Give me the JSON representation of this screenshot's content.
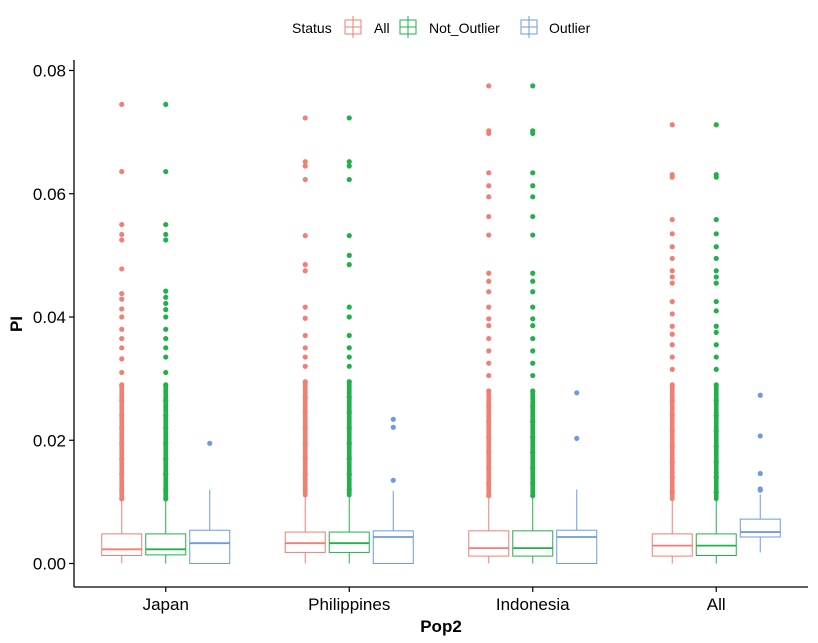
{
  "chart_data": {
    "type": "boxplot",
    "xlabel": "Pop2",
    "ylabel": "PI",
    "ylim": [
      0,
      0.08
    ],
    "yticks": [
      0.0,
      0.02,
      0.04,
      0.06,
      0.08
    ],
    "ytick_labels": [
      "0.00",
      "0.02",
      "0.04",
      "0.06",
      "0.08"
    ],
    "categories": [
      "Japan",
      "Philippines",
      "Indonesia",
      "All"
    ],
    "grid": false,
    "legend": {
      "title": "Status",
      "position": "top",
      "entries": [
        "All",
        "Not_Outlier",
        "Outlier"
      ]
    },
    "colors": {
      "All": "#F07F74",
      "Not_Outlier": "#22B04A",
      "Outlier": "#6C9BE0"
    },
    "series": [
      {
        "name": "All",
        "boxes": [
          {
            "min": 0.0,
            "q1": 0.0013,
            "median": 0.0023,
            "q3": 0.0048,
            "max": 0.0102,
            "outliers": [
              0.0745,
              0.0636,
              0.055,
              0.0534,
              0.0525,
              0.0478,
              0.0438,
              0.0429,
              0.0413,
              0.04,
              0.038,
              0.0365,
              0.035,
              0.0332,
              0.031,
              0.029,
              0.0265,
              0.024,
              0.022,
              0.0195,
              0.017,
              0.0145,
              0.012,
              0.0105
            ]
          },
          {
            "min": 0.0,
            "q1": 0.0018,
            "median": 0.0033,
            "q3": 0.0051,
            "max": 0.0108,
            "outliers": [
              0.0723,
              0.0652,
              0.0645,
              0.0623,
              0.0532,
              0.0485,
              0.0475,
              0.0416,
              0.0398,
              0.037,
              0.035,
              0.0335,
              0.032,
              0.0295,
              0.027,
              0.0245,
              0.022,
              0.0195,
              0.017,
              0.0145,
              0.012
            ]
          },
          {
            "min": 0.0,
            "q1": 0.0012,
            "median": 0.0025,
            "q3": 0.0053,
            "max": 0.0108,
            "outliers": [
              0.0775,
              0.0702,
              0.0698,
              0.0634,
              0.0613,
              0.0595,
              0.0563,
              0.0533,
              0.0471,
              0.0458,
              0.0441,
              0.0416,
              0.0397,
              0.0386,
              0.0365,
              0.0345,
              0.0325,
              0.0305,
              0.028,
              0.0255,
              0.023,
              0.0205,
              0.018,
              0.0155,
              0.013,
              0.011
            ]
          },
          {
            "min": 0.0,
            "q1": 0.0012,
            "median": 0.0029,
            "q3": 0.0048,
            "max": 0.0102,
            "outliers": [
              0.0712,
              0.0631,
              0.0627,
              0.0558,
              0.0535,
              0.0514,
              0.0495,
              0.0475,
              0.0465,
              0.0455,
              0.0425,
              0.0405,
              0.0385,
              0.0372,
              0.0355,
              0.0335,
              0.0315,
              0.029,
              0.0265,
              0.024,
              0.0215,
              0.019,
              0.0165,
              0.014,
              0.0115
            ]
          }
        ]
      },
      {
        "name": "Not_Outlier",
        "boxes": [
          {
            "min": 0.0,
            "q1": 0.0014,
            "median": 0.0023,
            "q3": 0.0048,
            "max": 0.0102,
            "outliers": [
              0.0745,
              0.0636,
              0.055,
              0.0534,
              0.0525,
              0.0442,
              0.0432,
              0.0422,
              0.0412,
              0.04,
              0.038,
              0.0365,
              0.035,
              0.0335,
              0.031,
              0.029,
              0.0265,
              0.024,
              0.022,
              0.0195,
              0.017,
              0.0145,
              0.012,
              0.0105
            ]
          },
          {
            "min": 0.0,
            "q1": 0.0018,
            "median": 0.0033,
            "q3": 0.0051,
            "max": 0.0108,
            "outliers": [
              0.0723,
              0.0652,
              0.0645,
              0.0623,
              0.0532,
              0.05,
              0.0485,
              0.0416,
              0.04,
              0.037,
              0.035,
              0.0335,
              0.032,
              0.0295,
              0.027,
              0.0245,
              0.022,
              0.0195,
              0.017,
              0.0145,
              0.012
            ]
          },
          {
            "min": 0.0,
            "q1": 0.0012,
            "median": 0.0025,
            "q3": 0.0053,
            "max": 0.0108,
            "outliers": [
              0.0775,
              0.0702,
              0.0698,
              0.0634,
              0.0613,
              0.0595,
              0.0563,
              0.0533,
              0.0471,
              0.0458,
              0.0441,
              0.0416,
              0.0397,
              0.0386,
              0.0365,
              0.0345,
              0.0325,
              0.0305,
              0.028,
              0.0255,
              0.023,
              0.0205,
              0.018,
              0.0155,
              0.013,
              0.011
            ]
          },
          {
            "min": 0.0,
            "q1": 0.0013,
            "median": 0.0029,
            "q3": 0.0048,
            "max": 0.0102,
            "outliers": [
              0.0712,
              0.0631,
              0.0627,
              0.0558,
              0.0535,
              0.0514,
              0.0495,
              0.0475,
              0.0465,
              0.0455,
              0.0425,
              0.041,
              0.0385,
              0.0375,
              0.0355,
              0.0335,
              0.0315,
              0.029,
              0.0265,
              0.024,
              0.0215,
              0.019,
              0.0165,
              0.014,
              0.0115
            ]
          }
        ]
      },
      {
        "name": "Outlier",
        "boxes": [
          {
            "min": 0.0,
            "q1": 0.0,
            "median": 0.0033,
            "q3": 0.0054,
            "max": 0.012,
            "outliers": [
              0.0195
            ]
          },
          {
            "min": 0.0,
            "q1": 0.0,
            "median": 0.0043,
            "q3": 0.0053,
            "max": 0.0118,
            "outliers": [
              0.0234,
              0.0221,
              0.0135
            ]
          },
          {
            "min": 0.0,
            "q1": 0.0,
            "median": 0.0043,
            "q3": 0.0054,
            "max": 0.012,
            "outliers": [
              0.0277,
              0.0203
            ]
          },
          {
            "min": 0.0018,
            "q1": 0.0043,
            "median": 0.0051,
            "q3": 0.0072,
            "max": 0.0112,
            "outliers": [
              0.0273,
              0.0207,
              0.0146,
              0.0121,
              0.0119
            ]
          }
        ]
      }
    ]
  }
}
